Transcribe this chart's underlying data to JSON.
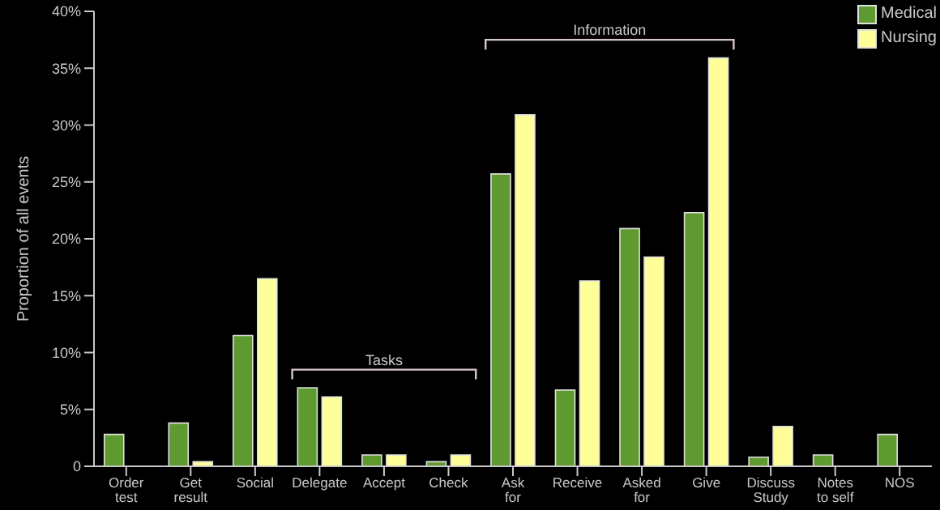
{
  "chart_data": {
    "type": "bar",
    "ylabel": "Proportion of all events",
    "categories": [
      "Order test",
      "Get result",
      "Social",
      "Delegate",
      "Accept",
      "Check",
      "Ask for",
      "Receive",
      "Asked for",
      "Give",
      "Discuss Study",
      "Notes to self",
      "NOS"
    ],
    "series": [
      {
        "name": "Medical",
        "color": "#5f9a30",
        "values": [
          2.8,
          3.8,
          11.5,
          6.9,
          1.0,
          0.4,
          25.7,
          6.7,
          20.9,
          22.3,
          0.8,
          1.0,
          2.8
        ]
      },
      {
        "name": "Nursing",
        "color": "#ffff99",
        "values": [
          0,
          0.4,
          16.5,
          6.1,
          1.0,
          1.0,
          30.9,
          16.3,
          18.4,
          35.9,
          3.5,
          0,
          0
        ]
      }
    ],
    "ylim": [
      0,
      40
    ],
    "yticks": [
      {
        "value": 0,
        "label": "0"
      },
      {
        "value": 5,
        "label": "5%"
      },
      {
        "value": 10,
        "label": "10%"
      },
      {
        "value": 15,
        "label": "15%"
      },
      {
        "value": 20,
        "label": "20%"
      },
      {
        "value": 25,
        "label": "25%"
      },
      {
        "value": 30,
        "label": "30%"
      },
      {
        "value": 35,
        "label": "35%"
      },
      {
        "value": 40,
        "label": "40%"
      }
    ],
    "annotations": [
      "Tasks",
      "Information"
    ],
    "legend": "top right",
    "grid": false
  }
}
